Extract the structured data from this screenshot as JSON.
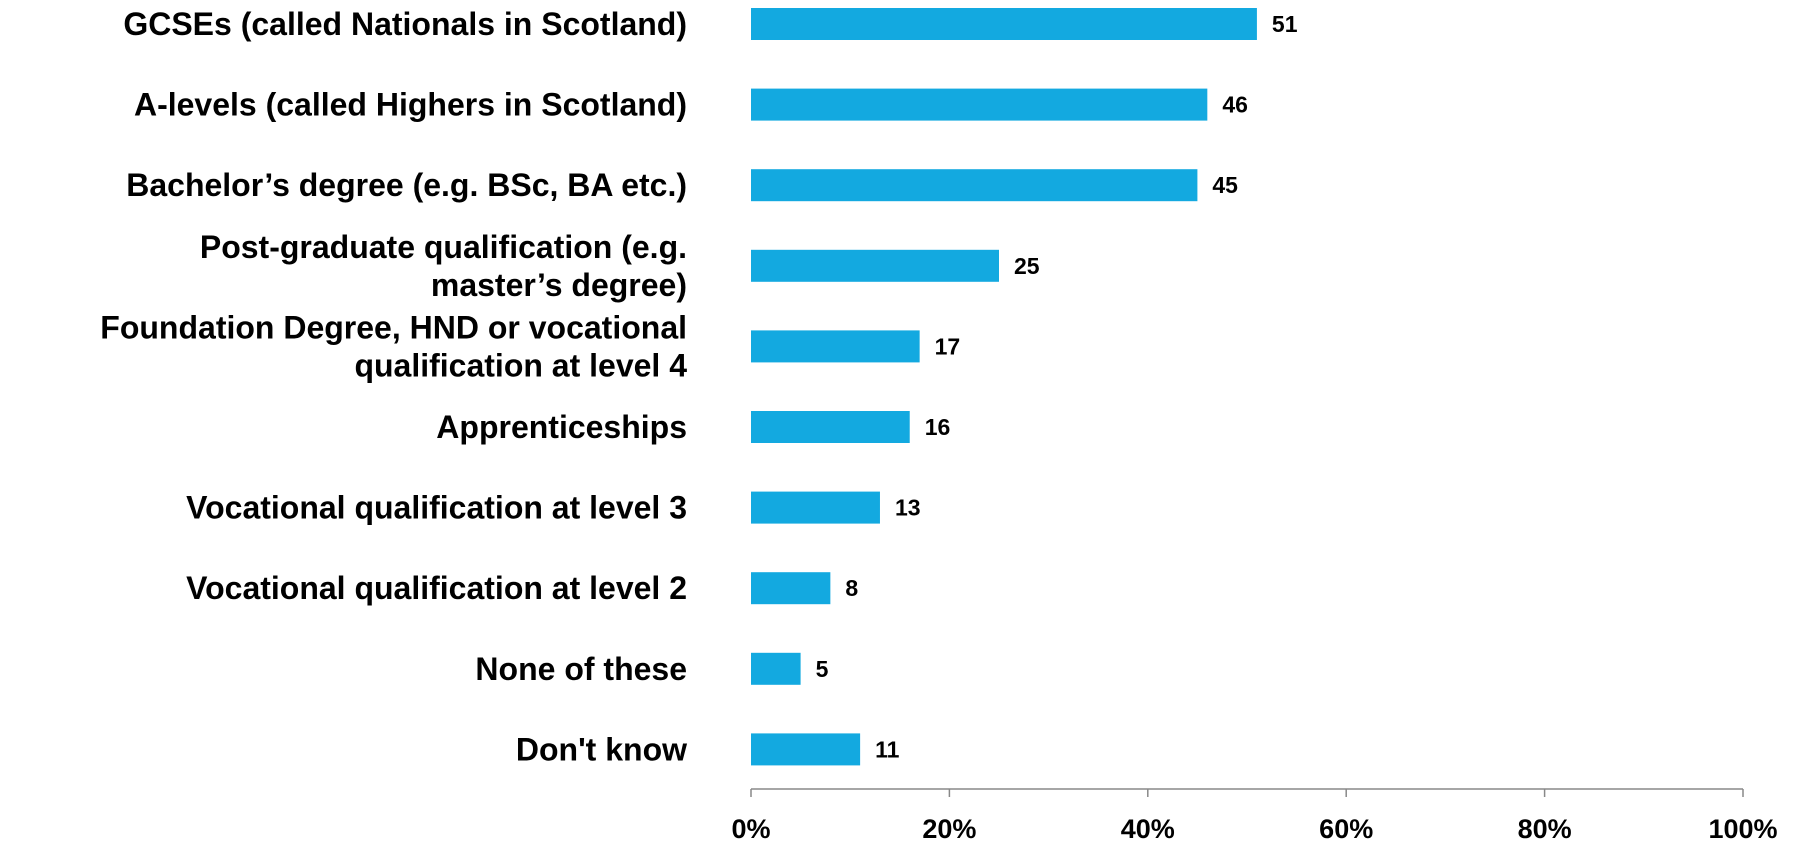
{
  "chart_data": {
    "type": "bar",
    "orientation": "horizontal",
    "title": "",
    "xlabel": "",
    "ylabel": "",
    "categories": [
      [
        "GCSEs (called Nationals in Scotland)"
      ],
      [
        "A-levels (called Highers in Scotland)"
      ],
      [
        "Bachelor’s degree (e.g. BSc, BA etc.)"
      ],
      [
        "Post-graduate qualification (e.g.",
        "master’s degree)"
      ],
      [
        "Foundation Degree, HND or vocational",
        "qualification at level 4"
      ],
      [
        "Apprenticeships"
      ],
      [
        "Vocational qualification at level 3"
      ],
      [
        "Vocational qualification at level 2"
      ],
      [
        "None of these"
      ],
      [
        "Don't know"
      ]
    ],
    "values": [
      51,
      46,
      45,
      25,
      17,
      16,
      13,
      8,
      5,
      11
    ],
    "value_labels": [
      "51",
      "46",
      "45",
      "25",
      "17",
      "16",
      "13",
      "8",
      "5",
      "11"
    ],
    "xlim": [
      0,
      100
    ],
    "x_ticks": [
      0,
      20,
      40,
      60,
      80,
      100
    ],
    "x_tick_labels": [
      "0%",
      "20%",
      "40%",
      "60%",
      "80%",
      "100%"
    ],
    "grid": false,
    "legend": "none",
    "bar_color": "#13A9E0",
    "axis_color": "#888888"
  }
}
